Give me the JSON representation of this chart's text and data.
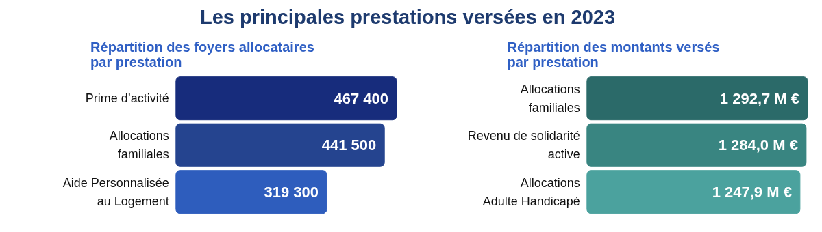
{
  "chart_data": [
    {
      "type": "bar",
      "orientation": "horizontal",
      "title": "Les principales prestations versées en 2023",
      "subtitle": "Répartition des foyers allocataires\npar prestation",
      "categories": [
        "Prime d’activité",
        "Allocations\nfamiliales",
        "Aide Personnalisée\nau Logement"
      ],
      "values": [
        467400,
        441500,
        319300
      ],
      "colors": [
        "#172c7c",
        "#25448f",
        "#2e5dbd"
      ],
      "value_labels": [
        "467 400",
        "441 500",
        "319 300"
      ],
      "tick_labels": false,
      "grid": false
    },
    {
      "type": "bar",
      "orientation": "horizontal",
      "subtitle": "Répartition des montants versés\npar prestation",
      "categories": [
        "Allocations\nfamiliales",
        "Revenu de solidarité\nactive",
        "Allocations\nAdulte Handicapé"
      ],
      "values": [
        1292.7,
        1284.0,
        1247.9
      ],
      "colors": [
        "#2b6a69",
        "#398581",
        "#4ba29e"
      ],
      "value_labels": [
        "1 292,7 M €",
        "1 284,0 M €",
        "1 247,9 M €"
      ],
      "tick_labels": false,
      "grid": false
    }
  ]
}
